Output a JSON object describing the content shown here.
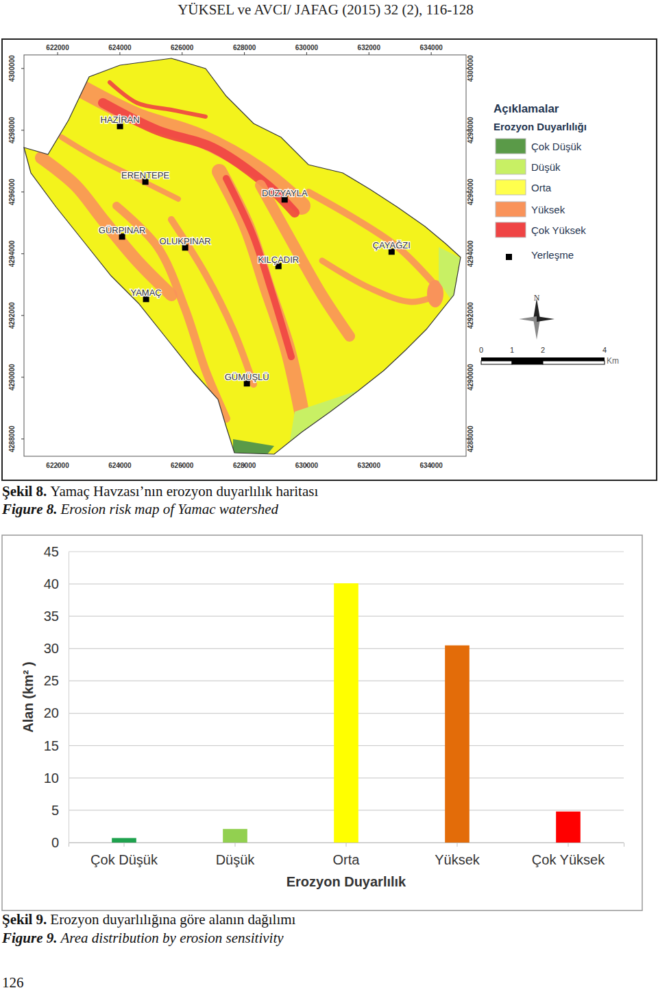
{
  "header": "YÜKSEL ve AVCI/ JAFAG (2015) 32 (2), 116-128",
  "map": {
    "xlim": [
      620920,
      635120
    ],
    "ylim": [
      4287440,
      4300440
    ],
    "xticks": [
      622000,
      624000,
      626000,
      628000,
      630000,
      632000,
      634000
    ],
    "yticks": [
      4288000,
      4290000,
      4292000,
      4294000,
      4296000,
      4298000,
      4300000
    ],
    "settlements": [
      {
        "name": "HAZİRAN",
        "x": 624004,
        "y": 4298133
      },
      {
        "name": "ERENTEPE",
        "x": 624819,
        "y": 4296333
      },
      {
        "name": "DÜZYAYLA",
        "x": 629291,
        "y": 4295756
      },
      {
        "name": "GÜRPINAR",
        "x": 624070,
        "y": 4294556
      },
      {
        "name": "OLUKPINAR",
        "x": 626097,
        "y": 4294200
      },
      {
        "name": "KILÇADIR",
        "x": 629093,
        "y": 4293600
      },
      {
        "name": "ÇAYAĞZI",
        "x": 632727,
        "y": 4294067
      },
      {
        "name": "YAMAÇ",
        "x": 624841,
        "y": 4292533
      },
      {
        "name": "GÜMÜŞLÜ",
        "x": 628079,
        "y": 4289800
      }
    ],
    "legend": {
      "title": "Açıklamalar",
      "subtitle": "Erozyon Duyarlılığı",
      "items": [
        {
          "label": "Çok Düşük",
          "color": "#5a9a48"
        },
        {
          "label": "Düşük",
          "color": "#c8f064"
        },
        {
          "label": "Orta",
          "color": "#ffff4d"
        },
        {
          "label": "Yüksek",
          "color": "#f9935a"
        },
        {
          "label": "Çok Yüksek",
          "color": "#ef4444"
        }
      ],
      "settlement_label": "Yerleşme"
    },
    "north": "N",
    "scale_bar": {
      "ticks": [
        0,
        1,
        2,
        4
      ],
      "unit": "Km"
    }
  },
  "figure8_caption": {
    "label": "Şekil 8.",
    "text": "Yamaç Havzası’nın erozyon duyarlılık haritası",
    "en_label": "Figure 8.",
    "en_text": "Erosion risk map of Yamac watershed"
  },
  "chart_data": {
    "type": "bar",
    "categories": [
      "Çok Düşük",
      "Düşük",
      "Orta",
      "Yüksek",
      "Çok Yüksek"
    ],
    "values": [
      0.7,
      2.1,
      40.1,
      30.5,
      4.8
    ],
    "colors": [
      "#1fa24e",
      "#92d050",
      "#ffff00",
      "#e36c09",
      "#ff0000"
    ],
    "ylim": [
      0,
      45
    ],
    "yticks": [
      0,
      5,
      10,
      15,
      20,
      25,
      30,
      35,
      40,
      45
    ],
    "grid": true,
    "x_label": "Erozyon Duyarlılık",
    "y_label": "Alan (km² )"
  },
  "figure9_caption": {
    "label": "Şekil 9.",
    "text": "Erozyon duyarlılığına göre alanın dağılımı",
    "en_label": "Figure 9.",
    "en_text": "Area distribution by erosion sensitivity"
  },
  "page_number": "126"
}
